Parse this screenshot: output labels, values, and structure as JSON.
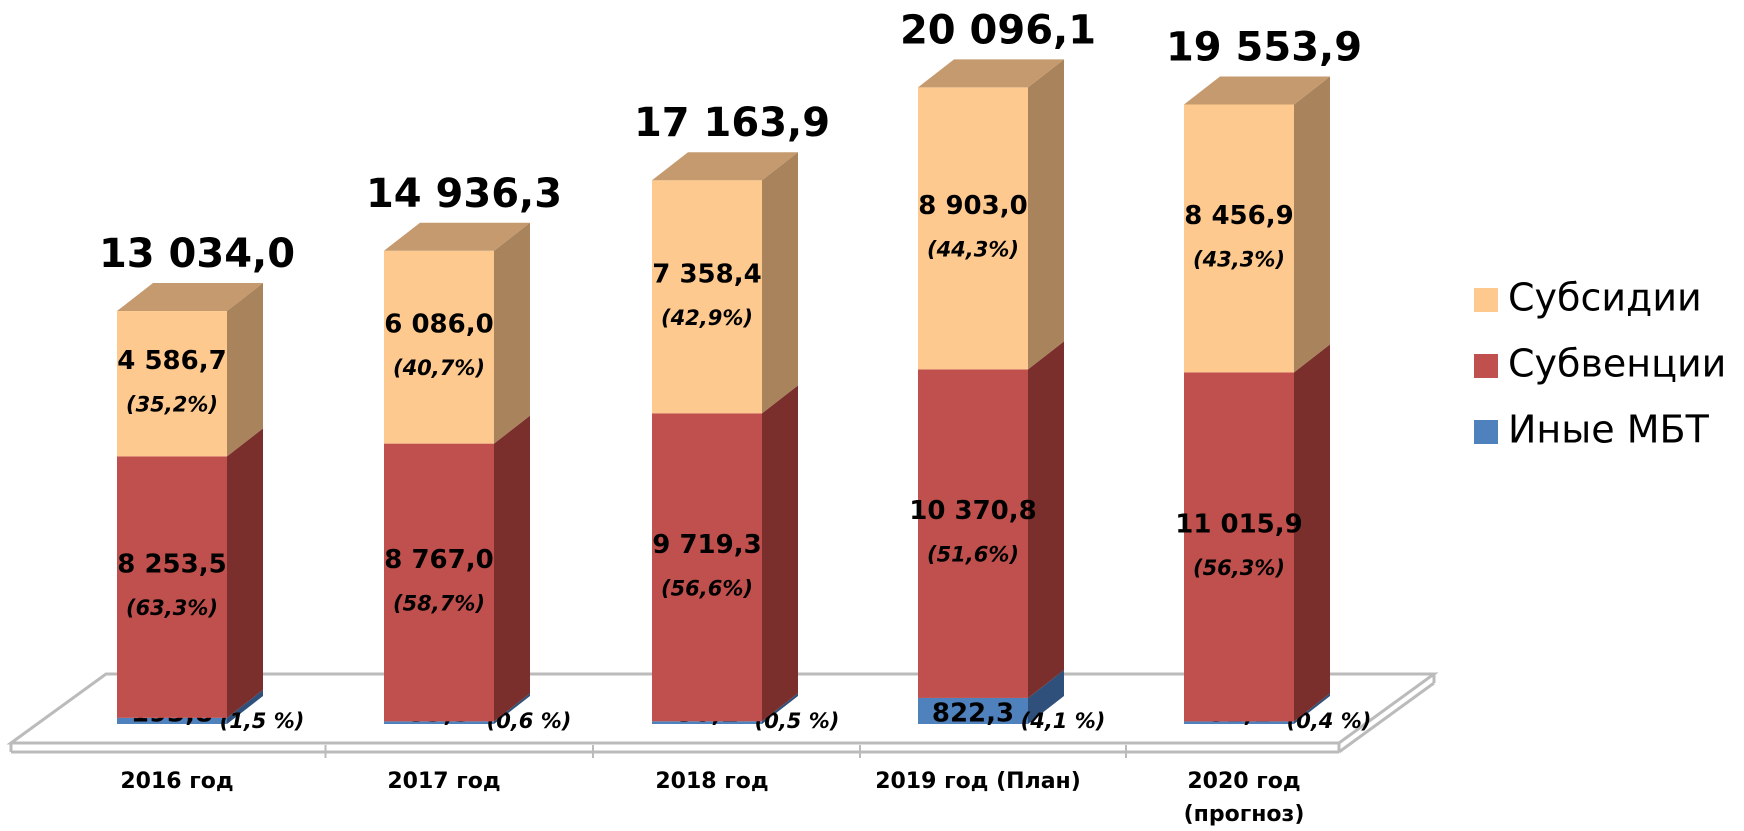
{
  "chart_data": {
    "type": "bar3d_stacked",
    "categories": [
      "2016 год",
      "2017 год",
      "2018 год",
      "2019 год (План)",
      "2020 год (прогноз)"
    ],
    "ylim": [
      0,
      22000
    ],
    "series": [
      {
        "name": "Иные МБТ",
        "color": "#4f81bd",
        "side": "#2e507a",
        "values": [
          193.8,
          83.3,
          86.2,
          822.3,
          81.1
        ],
        "value_labels": [
          "193,8",
          "83,3",
          "86,2",
          "822,3",
          "81,1"
        ],
        "percent_labels": [
          "(1,5 %)",
          "(0,6 %)",
          "(0,5 %)",
          "(4,1 %)",
          "(0,4 %)"
        ]
      },
      {
        "name": "Субвенции",
        "color": "#c0504d",
        "side": "#7a2f2d",
        "values": [
          8253.5,
          8767.0,
          9719.3,
          10370.8,
          11015.9
        ],
        "value_labels": [
          "8 253,5",
          "8 767,0",
          "9 719,3",
          "10 370,8",
          "11 015,9"
        ],
        "percent_labels": [
          "(63,3%)",
          "(58,7%)",
          "(56,6%)",
          "(51,6%)",
          "(56,3%)"
        ]
      },
      {
        "name": "Субсидии",
        "color": "#fdc98f",
        "side": "#a8835c",
        "top": "#c49a6e",
        "values": [
          4586.7,
          6086.0,
          7358.4,
          8903.0,
          8456.9
        ],
        "value_labels": [
          "4 586,7",
          "6 086,0",
          "7 358,4",
          "8 903,0",
          "8 456,9"
        ],
        "percent_labels": [
          "(35,2%)",
          "(40,7%)",
          "(42,9%)",
          "(44,3%)",
          "(43,3%)"
        ]
      }
    ],
    "totals": [
      13034.0,
      14936.3,
      17163.9,
      20096.1,
      19553.9
    ],
    "total_labels": [
      "13 034,0",
      "14 936,3",
      "17 163,9",
      "20 096,1",
      "19 553,9"
    ],
    "legend": "right"
  }
}
